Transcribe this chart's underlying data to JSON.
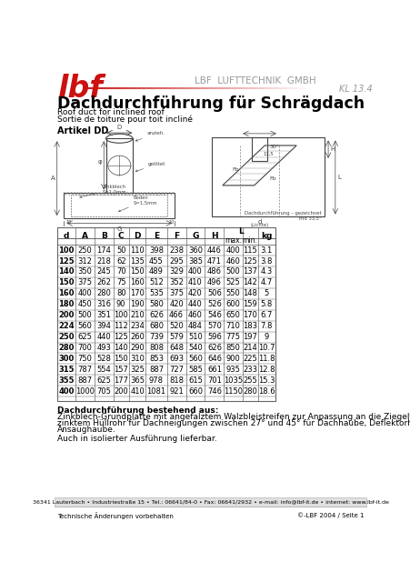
{
  "title": "Dachdurchführung für Schrägdach",
  "subtitle1": "Roof duct for inclined roof",
  "subtitle2": "Sortie de toiture pour toit incliné",
  "artikel": "Artikel DD",
  "company": "LBF  LUFTTECHNIK  GMBH",
  "kl": "KL 13.4",
  "table_data": [
    [
      100,
      250,
      174,
      50,
      110,
      398,
      238,
      360,
      446,
      400,
      115,
      3.1
    ],
    [
      125,
      312,
      218,
      62,
      135,
      455,
      295,
      385,
      471,
      460,
      125,
      3.8
    ],
    [
      140,
      350,
      245,
      70,
      150,
      489,
      329,
      400,
      486,
      500,
      137,
      4.3
    ],
    [
      150,
      375,
      262,
      75,
      160,
      512,
      352,
      410,
      496,
      525,
      142,
      4.7
    ],
    [
      160,
      400,
      280,
      80,
      170,
      535,
      375,
      420,
      506,
      550,
      148,
      5.0
    ],
    [
      180,
      450,
      316,
      90,
      190,
      580,
      420,
      440,
      526,
      600,
      159,
      5.8
    ],
    [
      200,
      500,
      351,
      100,
      210,
      626,
      466,
      460,
      546,
      650,
      170,
      6.7
    ],
    [
      224,
      560,
      394,
      112,
      234,
      680,
      520,
      484,
      570,
      710,
      183,
      7.8
    ],
    [
      250,
      625,
      440,
      125,
      260,
      739,
      579,
      510,
      596,
      775,
      197,
      9.0
    ],
    [
      280,
      700,
      493,
      140,
      290,
      808,
      648,
      540,
      626,
      850,
      214,
      10.7
    ],
    [
      300,
      750,
      528,
      150,
      310,
      853,
      693,
      560,
      646,
      900,
      225,
      11.8
    ],
    [
      315,
      787,
      554,
      157,
      325,
      887,
      727,
      585,
      661,
      935,
      233,
      12.8
    ],
    [
      355,
      887,
      625,
      177,
      365,
      978,
      818,
      615,
      701,
      1035,
      255,
      15.3
    ],
    [
      400,
      1000,
      705,
      200,
      410,
      1081,
      921,
      660,
      746,
      1150,
      280,
      18.6
    ]
  ],
  "description1": "Dachdurchführung bestehend aus:",
  "description2a": "Zinkblech-Grundplatte mit angefalztem Walzbleistreifen zur Anpassung an die Ziegelform, mit angelötetem ver-",
  "description2b": "zinktem Hüllrohr für Dachneigungen zwischen 27° und 45° für Dachhaube, Deflektorhaube, Lamellenhaube oder",
  "description2c": "Ansaughaube.",
  "description3": "Auch in isolierter Ausführung lieferbar.",
  "footer1": "36341 Lauterbach • Industriestraße 15 • Tel.: 06641/84-0 • Fax: 06641/2932 • e-mail: info@lbf-it.de • internet: www.lbf-it.de",
  "footer2": "Technische Änderungen vorbehalten",
  "footer3": "©-LBF 2004 / Seite 1",
  "bg_color": "#ffffff",
  "red_color": "#cc1111",
  "text_color": "#000000",
  "gray_color": "#999999",
  "dark_gray": "#444444",
  "table_border": "#666666"
}
